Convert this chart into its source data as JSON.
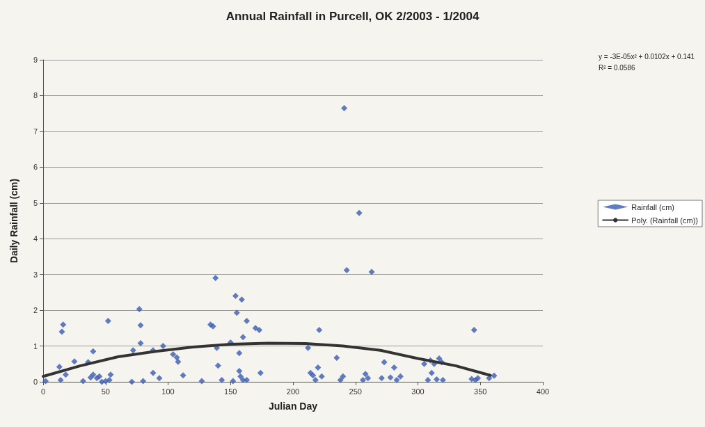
{
  "chart_data": {
    "type": "scatter",
    "title": "Annual Rainfall in Purcell, OK 2/2003 - 1/2004",
    "xlabel": "Julian Day",
    "ylabel": "Daily Rainfall (cm)",
    "annotations": [
      "y = -3E-05x² + 0.0102x + 0.141",
      "R² = 0.0586"
    ],
    "xlim": [
      0,
      400
    ],
    "xticks": [
      0,
      50,
      100,
      150,
      200,
      250,
      300,
      350,
      400
    ],
    "ylim": [
      0,
      9
    ],
    "yticks": [
      0,
      1,
      2,
      3,
      4,
      5,
      6,
      7,
      8,
      9
    ],
    "grid": "y",
    "legend": "right",
    "marker": "diamond",
    "series": [
      {
        "name": "Rainfall (cm)",
        "color": "#3a5bb0",
        "x": [
          2,
          13,
          14,
          15,
          16,
          18,
          25,
          32,
          36,
          38,
          40,
          40,
          43,
          45,
          47,
          50,
          52,
          53,
          54,
          71,
          72,
          77,
          78,
          78,
          80,
          88,
          88,
          93,
          96,
          104,
          107,
          108,
          112,
          127,
          134,
          136,
          138,
          139,
          140,
          143,
          150,
          152,
          154,
          155,
          157,
          157,
          158,
          159,
          160,
          160,
          163,
          163,
          170,
          173,
          174,
          212,
          214,
          216,
          218,
          220,
          221,
          223,
          235,
          238,
          240,
          241,
          243,
          253,
          256,
          258,
          260,
          263,
          271,
          273,
          278,
          281,
          283,
          286,
          305,
          308,
          310,
          311,
          313,
          315,
          317,
          319,
          320,
          343,
          345,
          346,
          348,
          357,
          361
        ],
        "values": [
          0.02,
          0.42,
          0.05,
          1.4,
          1.6,
          0.2,
          0.57,
          0.02,
          0.55,
          0.12,
          0.85,
          0.2,
          0.1,
          0.15,
          0.0,
          0.02,
          1.7,
          0.05,
          0.2,
          0.0,
          0.88,
          2.03,
          1.58,
          1.08,
          0.02,
          0.25,
          0.88,
          0.1,
          1.0,
          0.77,
          0.68,
          0.56,
          0.18,
          0.02,
          1.6,
          1.55,
          2.9,
          0.95,
          0.45,
          0.05,
          1.1,
          0.02,
          2.4,
          1.93,
          0.8,
          0.3,
          0.15,
          2.3,
          1.25,
          0.05,
          1.7,
          0.05,
          1.5,
          1.45,
          0.25,
          0.95,
          0.25,
          0.18,
          0.05,
          0.4,
          1.45,
          0.15,
          0.67,
          0.05,
          0.15,
          7.65,
          3.12,
          4.72,
          0.05,
          0.22,
          0.1,
          3.07,
          0.1,
          0.55,
          0.12,
          0.4,
          0.05,
          0.15,
          0.5,
          0.05,
          0.6,
          0.25,
          0.5,
          0.07,
          0.65,
          0.55,
          0.05,
          0.08,
          1.45,
          0.05,
          0.1,
          0.1,
          0.17
        ]
      },
      {
        "name": "Poly. (Rainfall (cm))",
        "type": "line",
        "color": "#333333",
        "marker": "none",
        "x": [
          0,
          30,
          60,
          90,
          120,
          150,
          180,
          210,
          240,
          270,
          300,
          330,
          358
        ],
        "values": [
          0.15,
          0.45,
          0.7,
          0.85,
          0.97,
          1.05,
          1.08,
          1.07,
          1.0,
          0.88,
          0.65,
          0.45,
          0.18
        ]
      }
    ]
  }
}
